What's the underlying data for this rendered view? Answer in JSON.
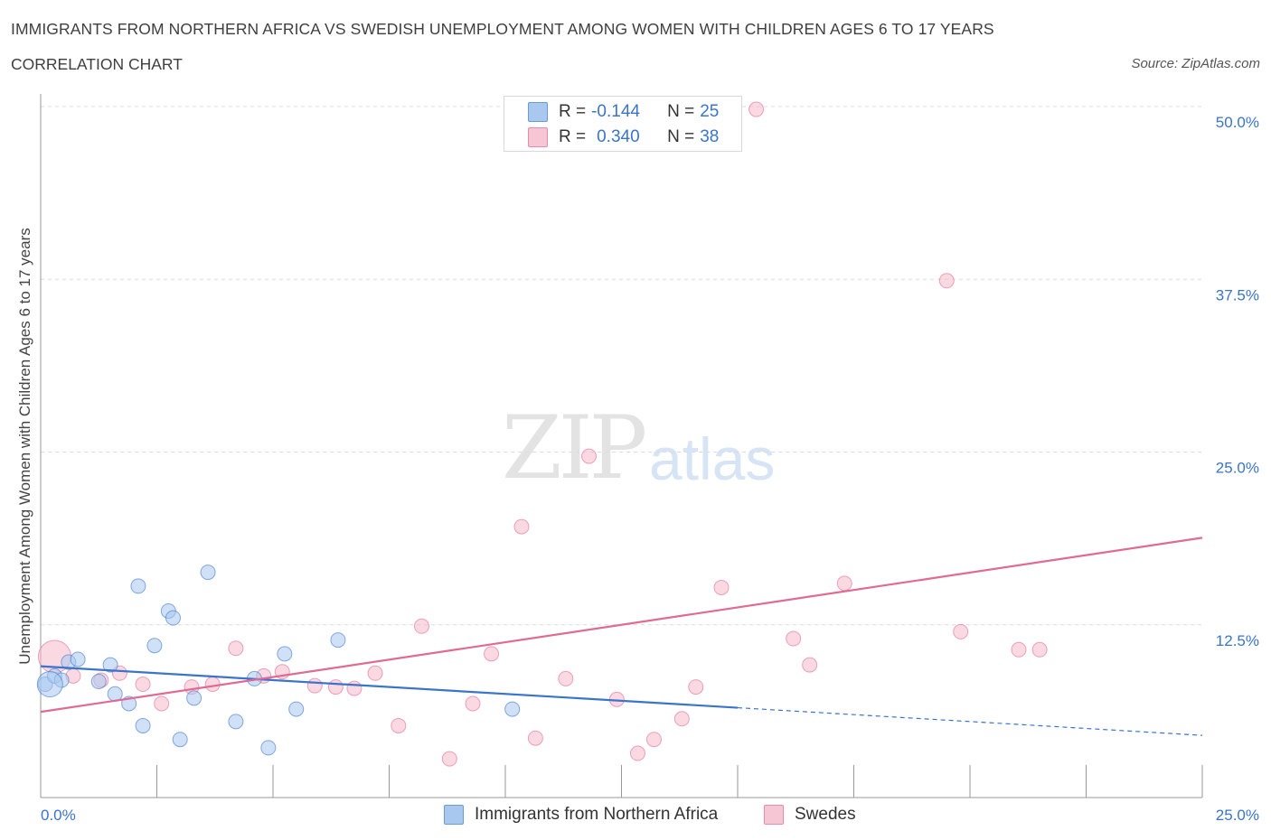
{
  "header": {
    "title": "IMMIGRANTS FROM NORTHERN AFRICA VS SWEDISH UNEMPLOYMENT AMONG WOMEN WITH CHILDREN AGES 6 TO 17 YEARS",
    "subtitle": "CORRELATION CHART",
    "source": "Source: ZipAtlas.com"
  },
  "watermark": {
    "zip": "ZIP",
    "atlas": "atlas"
  },
  "legend": {
    "rows": [
      {
        "r_label": "R =",
        "r_value": "-0.144",
        "n_label": "N =",
        "n_value": "25",
        "color": "#a9c8f0"
      },
      {
        "r_label": "R =",
        "r_value": "0.340",
        "n_label": "N =",
        "n_value": "38",
        "color": "#f7b9cc"
      }
    ],
    "series": [
      {
        "label": "Immigrants from Northern Africa",
        "color": "#a9c8f0"
      },
      {
        "label": "Swedes",
        "color": "#f7b9cc"
      }
    ]
  },
  "chart_data": {
    "type": "scatter",
    "ylabel": "Unemployment Among Women with Children Ages 6 to 17 years",
    "xlim": [
      0,
      25
    ],
    "ylim": [
      0,
      50
    ],
    "x_tick_labels": [
      "0.0%",
      "25.0%"
    ],
    "y_ticks": [
      12.5,
      25.0,
      37.5,
      50.0
    ],
    "y_tick_labels": [
      "12.5%",
      "25.0%",
      "37.5%",
      "50.0%"
    ],
    "grid": true,
    "legend_position": "top-center",
    "colors": {
      "blue_fill": "#a9c8f0",
      "blue_line": "#3a74cc",
      "pink_fill": "#f7b9cc",
      "pink_line": "#e06a93",
      "tick_text": "#3a74cc"
    },
    "series": [
      {
        "name": "Immigrants from Northern Africa",
        "points": [
          [
            0.1,
            8.2
          ],
          [
            0.3,
            8.8
          ],
          [
            0.45,
            8.5
          ],
          [
            0.6,
            9.8
          ],
          [
            0.8,
            10.0
          ],
          [
            1.25,
            8.4
          ],
          [
            1.5,
            9.6
          ],
          [
            1.6,
            7.5
          ],
          [
            1.9,
            6.8
          ],
          [
            2.1,
            15.3
          ],
          [
            2.2,
            5.2
          ],
          [
            2.45,
            11.0
          ],
          [
            2.75,
            13.5
          ],
          [
            2.85,
            13.0
          ],
          [
            3.0,
            4.2
          ],
          [
            3.3,
            7.2
          ],
          [
            3.6,
            16.3
          ],
          [
            4.2,
            5.5
          ],
          [
            4.6,
            8.6
          ],
          [
            4.9,
            3.6
          ],
          [
            5.25,
            10.4
          ],
          [
            5.5,
            6.4
          ],
          [
            6.4,
            11.4
          ],
          [
            10.15,
            6.4
          ],
          [
            0.2,
            8.2
          ]
        ],
        "trend": {
          "x": [
            0,
            15
          ],
          "y": [
            9.5,
            6.5
          ],
          "dashed_to": [
            25,
            4.5
          ]
        }
      },
      {
        "name": "Swedes",
        "points": [
          [
            0.3,
            10.2
          ],
          [
            0.7,
            8.8
          ],
          [
            1.3,
            8.5
          ],
          [
            1.7,
            9.0
          ],
          [
            2.2,
            8.2
          ],
          [
            2.6,
            6.8
          ],
          [
            3.25,
            8.0
          ],
          [
            3.7,
            8.2
          ],
          [
            4.2,
            10.8
          ],
          [
            4.8,
            8.8
          ],
          [
            5.2,
            9.1
          ],
          [
            5.9,
            8.1
          ],
          [
            6.35,
            8.0
          ],
          [
            6.75,
            7.9
          ],
          [
            7.2,
            9.0
          ],
          [
            7.7,
            5.2
          ],
          [
            8.2,
            12.4
          ],
          [
            8.8,
            2.8
          ],
          [
            9.3,
            6.8
          ],
          [
            9.7,
            10.4
          ],
          [
            10.35,
            19.6
          ],
          [
            10.65,
            4.3
          ],
          [
            11.3,
            8.6
          ],
          [
            11.8,
            24.7
          ],
          [
            12.4,
            7.1
          ],
          [
            12.85,
            3.2
          ],
          [
            13.2,
            4.2
          ],
          [
            13.8,
            5.7
          ],
          [
            14.1,
            8.0
          ],
          [
            14.65,
            15.2
          ],
          [
            15.4,
            49.8
          ],
          [
            16.2,
            11.5
          ],
          [
            16.55,
            9.6
          ],
          [
            17.3,
            15.5
          ],
          [
            19.5,
            37.4
          ],
          [
            19.8,
            12.0
          ],
          [
            21.05,
            10.7
          ],
          [
            21.5,
            10.7
          ]
        ],
        "trend": {
          "x": [
            0,
            25
          ],
          "y": [
            6.2,
            18.8
          ]
        }
      }
    ]
  }
}
